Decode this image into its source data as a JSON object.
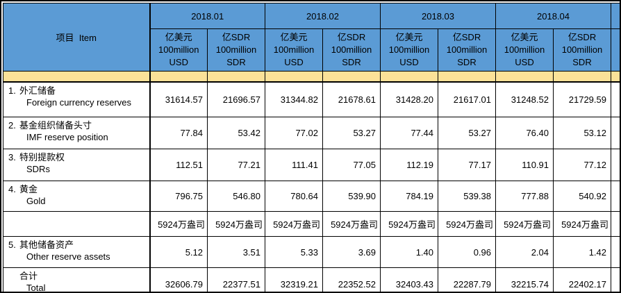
{
  "colors": {
    "header_blue": "#5B9BD5",
    "stripe_yellow": "#FBE198",
    "border": "#000000",
    "text": "#000000"
  },
  "table": {
    "item_header": "项目  Item",
    "months": [
      "2018.01",
      "2018.02",
      "2018.03",
      "2018.04"
    ],
    "unit_usd": {
      "line1": "亿美元",
      "line2": "100million",
      "line3": "USD"
    },
    "unit_sdr": {
      "line1": "亿SDR",
      "line2": "100million",
      "line3": "SDR"
    },
    "rows": [
      {
        "no": "1.",
        "cn": "外汇储备",
        "en": "Foreign currency reserves",
        "values": [
          "31614.57",
          "21696.57",
          "31344.82",
          "21678.61",
          "31428.20",
          "21617.01",
          "31248.52",
          "21729.59"
        ]
      },
      {
        "no": "2.",
        "cn": "基金组织储备头寸",
        "en": "IMF reserve position",
        "values": [
          "77.84",
          "53.42",
          "77.02",
          "53.27",
          "77.44",
          "53.27",
          "76.40",
          "53.12"
        ]
      },
      {
        "no": "3.",
        "cn": "特别提款权",
        "en": "SDRs",
        "values": [
          "112.51",
          "77.21",
          "111.41",
          "77.05",
          "112.19",
          "77.17",
          "110.91",
          "77.12"
        ]
      },
      {
        "no": "4.",
        "cn": "黄金",
        "en": "Gold",
        "values": [
          "796.75",
          "546.80",
          "780.64",
          "539.90",
          "784.19",
          "539.38",
          "777.88",
          "540.92"
        ]
      },
      {
        "no": "",
        "cn": "",
        "en": "",
        "values": [
          "5924万盎司",
          "5924万盎司",
          "5924万盎司",
          "5924万盎司",
          "5924万盎司",
          "5924万盎司",
          "5924万盎司",
          "5924万盎司"
        ]
      },
      {
        "no": "5.",
        "cn": "其他储备资产",
        "en": "Other reserve assets",
        "values": [
          "5.12",
          "3.51",
          "5.33",
          "3.69",
          "1.40",
          "0.96",
          "2.04",
          "1.42"
        ]
      },
      {
        "no": "",
        "cn": "合计",
        "en": "Total",
        "values": [
          "32606.79",
          "22377.51",
          "32319.21",
          "22352.52",
          "32403.43",
          "22287.79",
          "32215.74",
          "22402.17"
        ]
      }
    ]
  }
}
